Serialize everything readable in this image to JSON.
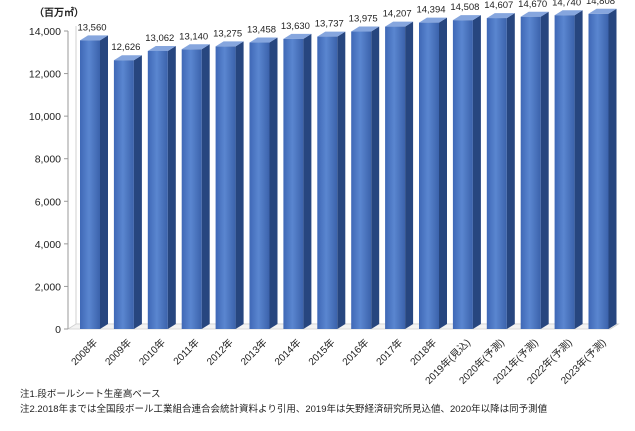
{
  "chart_data": {
    "type": "bar",
    "unit_label": "（百万㎡）",
    "categories": [
      "2008年",
      "2009年",
      "2010年",
      "2011年",
      "2012年",
      "2013年",
      "2014年",
      "2015年",
      "2016年",
      "2017年",
      "2018年",
      "2019年(見込)",
      "2020年(予測)",
      "2021年(予測)",
      "2022年(予測)",
      "2023年(予測)"
    ],
    "values": [
      13560,
      12626,
      13062,
      13140,
      13275,
      13458,
      13630,
      13737,
      13975,
      14207,
      14394,
      14508,
      14607,
      14670,
      14740,
      14808
    ],
    "value_labels": [
      "13,560",
      "12,626",
      "13,062",
      "13,140",
      "13,275",
      "13,458",
      "13,630",
      "13,737",
      "13,975",
      "14,207",
      "14,394",
      "14,508",
      "14,607",
      "14,670",
      "14,740",
      "14,808"
    ],
    "ylim": [
      0,
      14000
    ],
    "yticks": [
      0,
      2000,
      4000,
      6000,
      8000,
      10000,
      12000,
      14000
    ],
    "ytick_labels": [
      "0",
      "2,000",
      "4,000",
      "6,000",
      "8,000",
      "10,000",
      "12,000",
      "14,000"
    ],
    "bar_color": "#4472c4",
    "grid": false,
    "legend": "none"
  },
  "notes": [
    "注1.段ボールシート生産高ベース",
    "注2.2018年までは全国段ボール工業組合連合会統計資料より引用、2019年は矢野経済研究所見込値、2020年以降は同予測値"
  ]
}
